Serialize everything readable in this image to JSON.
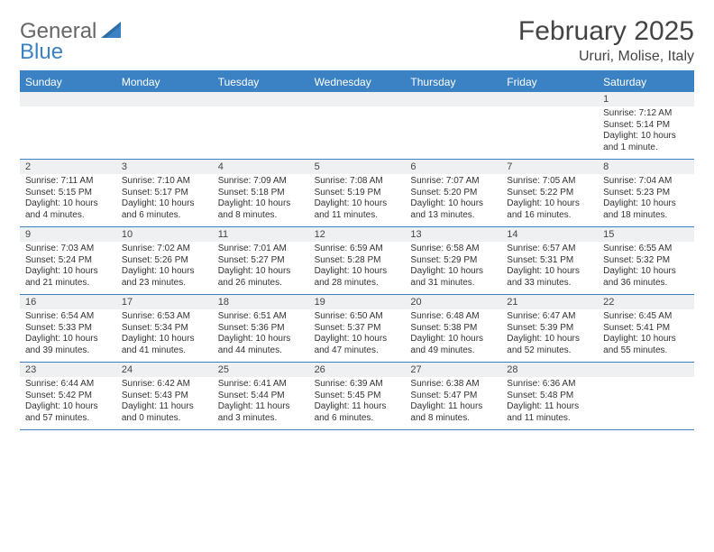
{
  "brand": {
    "word1": "General",
    "word2": "Blue",
    "color1": "#666666",
    "color2": "#3b82c4"
  },
  "title": "February 2025",
  "location": "Ururi, Molise, Italy",
  "header_bg": "#3b82c4",
  "daynum_bg": "#eef0f1",
  "days_of_week": [
    "Sunday",
    "Monday",
    "Tuesday",
    "Wednesday",
    "Thursday",
    "Friday",
    "Saturday"
  ],
  "weeks": [
    [
      {
        "n": "",
        "l1": "",
        "l2": "",
        "l3": "",
        "l4": ""
      },
      {
        "n": "",
        "l1": "",
        "l2": "",
        "l3": "",
        "l4": ""
      },
      {
        "n": "",
        "l1": "",
        "l2": "",
        "l3": "",
        "l4": ""
      },
      {
        "n": "",
        "l1": "",
        "l2": "",
        "l3": "",
        "l4": ""
      },
      {
        "n": "",
        "l1": "",
        "l2": "",
        "l3": "",
        "l4": ""
      },
      {
        "n": "",
        "l1": "",
        "l2": "",
        "l3": "",
        "l4": ""
      },
      {
        "n": "1",
        "l1": "Sunrise: 7:12 AM",
        "l2": "Sunset: 5:14 PM",
        "l3": "Daylight: 10 hours",
        "l4": "and 1 minute."
      }
    ],
    [
      {
        "n": "2",
        "l1": "Sunrise: 7:11 AM",
        "l2": "Sunset: 5:15 PM",
        "l3": "Daylight: 10 hours",
        "l4": "and 4 minutes."
      },
      {
        "n": "3",
        "l1": "Sunrise: 7:10 AM",
        "l2": "Sunset: 5:17 PM",
        "l3": "Daylight: 10 hours",
        "l4": "and 6 minutes."
      },
      {
        "n": "4",
        "l1": "Sunrise: 7:09 AM",
        "l2": "Sunset: 5:18 PM",
        "l3": "Daylight: 10 hours",
        "l4": "and 8 minutes."
      },
      {
        "n": "5",
        "l1": "Sunrise: 7:08 AM",
        "l2": "Sunset: 5:19 PM",
        "l3": "Daylight: 10 hours",
        "l4": "and 11 minutes."
      },
      {
        "n": "6",
        "l1": "Sunrise: 7:07 AM",
        "l2": "Sunset: 5:20 PM",
        "l3": "Daylight: 10 hours",
        "l4": "and 13 minutes."
      },
      {
        "n": "7",
        "l1": "Sunrise: 7:05 AM",
        "l2": "Sunset: 5:22 PM",
        "l3": "Daylight: 10 hours",
        "l4": "and 16 minutes."
      },
      {
        "n": "8",
        "l1": "Sunrise: 7:04 AM",
        "l2": "Sunset: 5:23 PM",
        "l3": "Daylight: 10 hours",
        "l4": "and 18 minutes."
      }
    ],
    [
      {
        "n": "9",
        "l1": "Sunrise: 7:03 AM",
        "l2": "Sunset: 5:24 PM",
        "l3": "Daylight: 10 hours",
        "l4": "and 21 minutes."
      },
      {
        "n": "10",
        "l1": "Sunrise: 7:02 AM",
        "l2": "Sunset: 5:26 PM",
        "l3": "Daylight: 10 hours",
        "l4": "and 23 minutes."
      },
      {
        "n": "11",
        "l1": "Sunrise: 7:01 AM",
        "l2": "Sunset: 5:27 PM",
        "l3": "Daylight: 10 hours",
        "l4": "and 26 minutes."
      },
      {
        "n": "12",
        "l1": "Sunrise: 6:59 AM",
        "l2": "Sunset: 5:28 PM",
        "l3": "Daylight: 10 hours",
        "l4": "and 28 minutes."
      },
      {
        "n": "13",
        "l1": "Sunrise: 6:58 AM",
        "l2": "Sunset: 5:29 PM",
        "l3": "Daylight: 10 hours",
        "l4": "and 31 minutes."
      },
      {
        "n": "14",
        "l1": "Sunrise: 6:57 AM",
        "l2": "Sunset: 5:31 PM",
        "l3": "Daylight: 10 hours",
        "l4": "and 33 minutes."
      },
      {
        "n": "15",
        "l1": "Sunrise: 6:55 AM",
        "l2": "Sunset: 5:32 PM",
        "l3": "Daylight: 10 hours",
        "l4": "and 36 minutes."
      }
    ],
    [
      {
        "n": "16",
        "l1": "Sunrise: 6:54 AM",
        "l2": "Sunset: 5:33 PM",
        "l3": "Daylight: 10 hours",
        "l4": "and 39 minutes."
      },
      {
        "n": "17",
        "l1": "Sunrise: 6:53 AM",
        "l2": "Sunset: 5:34 PM",
        "l3": "Daylight: 10 hours",
        "l4": "and 41 minutes."
      },
      {
        "n": "18",
        "l1": "Sunrise: 6:51 AM",
        "l2": "Sunset: 5:36 PM",
        "l3": "Daylight: 10 hours",
        "l4": "and 44 minutes."
      },
      {
        "n": "19",
        "l1": "Sunrise: 6:50 AM",
        "l2": "Sunset: 5:37 PM",
        "l3": "Daylight: 10 hours",
        "l4": "and 47 minutes."
      },
      {
        "n": "20",
        "l1": "Sunrise: 6:48 AM",
        "l2": "Sunset: 5:38 PM",
        "l3": "Daylight: 10 hours",
        "l4": "and 49 minutes."
      },
      {
        "n": "21",
        "l1": "Sunrise: 6:47 AM",
        "l2": "Sunset: 5:39 PM",
        "l3": "Daylight: 10 hours",
        "l4": "and 52 minutes."
      },
      {
        "n": "22",
        "l1": "Sunrise: 6:45 AM",
        "l2": "Sunset: 5:41 PM",
        "l3": "Daylight: 10 hours",
        "l4": "and 55 minutes."
      }
    ],
    [
      {
        "n": "23",
        "l1": "Sunrise: 6:44 AM",
        "l2": "Sunset: 5:42 PM",
        "l3": "Daylight: 10 hours",
        "l4": "and 57 minutes."
      },
      {
        "n": "24",
        "l1": "Sunrise: 6:42 AM",
        "l2": "Sunset: 5:43 PM",
        "l3": "Daylight: 11 hours",
        "l4": "and 0 minutes."
      },
      {
        "n": "25",
        "l1": "Sunrise: 6:41 AM",
        "l2": "Sunset: 5:44 PM",
        "l3": "Daylight: 11 hours",
        "l4": "and 3 minutes."
      },
      {
        "n": "26",
        "l1": "Sunrise: 6:39 AM",
        "l2": "Sunset: 5:45 PM",
        "l3": "Daylight: 11 hours",
        "l4": "and 6 minutes."
      },
      {
        "n": "27",
        "l1": "Sunrise: 6:38 AM",
        "l2": "Sunset: 5:47 PM",
        "l3": "Daylight: 11 hours",
        "l4": "and 8 minutes."
      },
      {
        "n": "28",
        "l1": "Sunrise: 6:36 AM",
        "l2": "Sunset: 5:48 PM",
        "l3": "Daylight: 11 hours",
        "l4": "and 11 minutes."
      },
      {
        "n": "",
        "l1": "",
        "l2": "",
        "l3": "",
        "l4": ""
      }
    ]
  ]
}
